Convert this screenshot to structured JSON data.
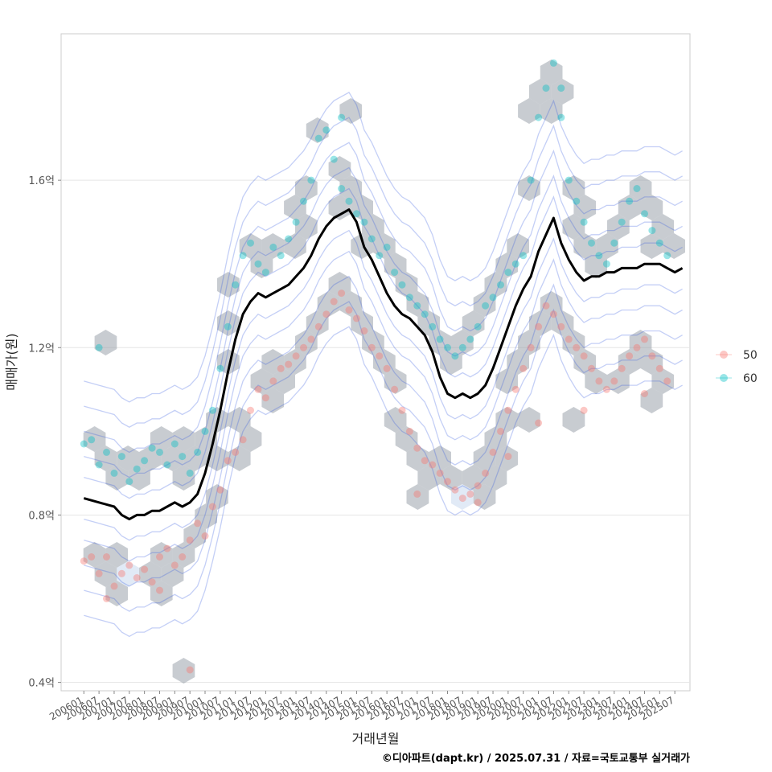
{
  "chart_data": {
    "type": "scatter",
    "xlabel": "거래년월",
    "ylabel": "매매가(원)",
    "caption": "©디아파트(dapt.kr) / 2025.07.31 / 자료=국토교통부 실거래가",
    "x_ticks": [
      "200601",
      "200607",
      "200701",
      "200707",
      "200801",
      "200807",
      "200901",
      "200907",
      "201001",
      "201007",
      "201101",
      "201107",
      "201201",
      "201207",
      "201301",
      "201307",
      "201401",
      "201407",
      "201501",
      "201507",
      "201601",
      "201607",
      "201701",
      "201707",
      "201801",
      "201807",
      "201901",
      "201907",
      "202001",
      "202007",
      "202101",
      "202107",
      "202201",
      "202207",
      "202301",
      "202307",
      "202401",
      "202407",
      "202501",
      "202507"
    ],
    "y_ticks": [
      {
        "value": 0.4,
        "label": "0.4억"
      },
      {
        "value": 0.8,
        "label": "0.8억"
      },
      {
        "value": 1.2,
        "label": "1.2억"
      },
      {
        "value": 1.6,
        "label": "1.6억"
      }
    ],
    "ylim": [
      0.38,
      1.95
    ],
    "xlim": [
      -3,
      80
    ],
    "legend": {
      "placement": "right",
      "entries": [
        {
          "label": "50",
          "color": "#F8766D"
        },
        {
          "label": "60",
          "color": "#00BFC4"
        }
      ]
    },
    "colors": {
      "series_50": "#F8766D",
      "series_60": "#00BFC4",
      "hex": "#9AA3AB",
      "contour": "#2A52E0",
      "trend": "#000000",
      "grid": "#E5E5E5"
    },
    "trend_line": {
      "name": "moving average",
      "x": [
        0,
        2,
        4,
        5,
        6,
        7,
        8,
        9,
        10,
        11,
        12,
        13,
        14,
        15,
        16,
        17,
        18,
        19,
        20,
        21,
        22,
        23,
        24,
        25,
        26,
        27,
        28,
        29,
        30,
        31,
        32,
        33,
        34,
        35,
        36,
        37,
        38,
        39,
        40,
        41,
        42,
        43,
        44,
        45,
        46,
        47,
        48,
        49,
        50,
        51,
        52,
        53,
        54,
        55,
        56,
        57,
        58,
        59,
        60,
        61,
        62,
        63,
        64,
        65,
        66,
        67,
        68,
        69,
        70,
        71,
        72,
        73,
        74,
        75,
        76,
        77,
        78,
        79
      ],
      "y": [
        0.84,
        0.83,
        0.82,
        0.8,
        0.79,
        0.8,
        0.8,
        0.81,
        0.81,
        0.82,
        0.83,
        0.82,
        0.83,
        0.85,
        0.9,
        0.97,
        1.05,
        1.14,
        1.22,
        1.28,
        1.31,
        1.33,
        1.32,
        1.33,
        1.34,
        1.35,
        1.37,
        1.39,
        1.42,
        1.46,
        1.49,
        1.51,
        1.52,
        1.53,
        1.5,
        1.44,
        1.41,
        1.37,
        1.33,
        1.3,
        1.28,
        1.27,
        1.25,
        1.23,
        1.19,
        1.13,
        1.09,
        1.08,
        1.09,
        1.08,
        1.09,
        1.11,
        1.15,
        1.2,
        1.25,
        1.3,
        1.34,
        1.37,
        1.43,
        1.47,
        1.51,
        1.45,
        1.41,
        1.38,
        1.36,
        1.37,
        1.37,
        1.38,
        1.38,
        1.39,
        1.39,
        1.39,
        1.4,
        1.4,
        1.4,
        1.39,
        1.38,
        1.39
      ]
    },
    "series": [
      {
        "name": "50",
        "points": [
          [
            0,
            0.69
          ],
          [
            1,
            0.7
          ],
          [
            2,
            0.66
          ],
          [
            3,
            0.7
          ],
          [
            4,
            0.63
          ],
          [
            5,
            0.66
          ],
          [
            6,
            0.68
          ],
          [
            7,
            0.65
          ],
          [
            8,
            0.67
          ],
          [
            9,
            0.64
          ],
          [
            10,
            0.7
          ],
          [
            11,
            0.72
          ],
          [
            12,
            0.68
          ],
          [
            13,
            0.7
          ],
          [
            14,
            0.74
          ],
          [
            15,
            0.78
          ],
          [
            16,
            0.75
          ],
          [
            17,
            0.82
          ],
          [
            18,
            0.86
          ],
          [
            19,
            0.93
          ],
          [
            20,
            0.95
          ],
          [
            21,
            0.98
          ],
          [
            22,
            1.05
          ],
          [
            23,
            1.1
          ],
          [
            24,
            1.08
          ],
          [
            25,
            1.12
          ],
          [
            26,
            1.15
          ],
          [
            27,
            1.16
          ],
          [
            28,
            1.18
          ],
          [
            29,
            1.2
          ],
          [
            30,
            1.22
          ],
          [
            31,
            1.25
          ],
          [
            32,
            1.28
          ],
          [
            33,
            1.31
          ],
          [
            34,
            1.33
          ],
          [
            35,
            1.29
          ],
          [
            36,
            1.27
          ],
          [
            37,
            1.24
          ],
          [
            38,
            1.2
          ],
          [
            39,
            1.18
          ],
          [
            40,
            1.15
          ],
          [
            41,
            1.1
          ],
          [
            42,
            1.05
          ],
          [
            43,
            1.0
          ],
          [
            44,
            0.96
          ],
          [
            45,
            0.93
          ],
          [
            46,
            0.92
          ],
          [
            47,
            0.9
          ],
          [
            48,
            0.88
          ],
          [
            49,
            0.86
          ],
          [
            50,
            0.84
          ],
          [
            51,
            0.85
          ],
          [
            52,
            0.87
          ],
          [
            53,
            0.9
          ],
          [
            54,
            0.95
          ],
          [
            55,
            1.0
          ],
          [
            56,
            1.05
          ],
          [
            57,
            1.1
          ],
          [
            58,
            1.15
          ],
          [
            59,
            1.2
          ],
          [
            60,
            1.25
          ],
          [
            61,
            1.3
          ],
          [
            62,
            1.28
          ],
          [
            63,
            1.25
          ],
          [
            64,
            1.22
          ],
          [
            65,
            1.2
          ],
          [
            66,
            1.18
          ],
          [
            67,
            1.15
          ],
          [
            68,
            1.12
          ],
          [
            69,
            1.1
          ],
          [
            70,
            1.12
          ],
          [
            71,
            1.15
          ],
          [
            72,
            1.18
          ],
          [
            73,
            1.2
          ],
          [
            74,
            1.22
          ],
          [
            75,
            1.18
          ],
          [
            76,
            1.15
          ],
          [
            77,
            1.12
          ],
          [
            14,
            0.43
          ],
          [
            3,
            0.6
          ],
          [
            10,
            0.62
          ],
          [
            44,
            0.85
          ],
          [
            52,
            0.83
          ],
          [
            56,
            0.94
          ],
          [
            60,
            1.02
          ],
          [
            66,
            1.05
          ],
          [
            74,
            1.09
          ]
        ]
      },
      {
        "name": "60",
        "points": [
          [
            0,
            0.97
          ],
          [
            1,
            0.98
          ],
          [
            2,
            0.92
          ],
          [
            3,
            0.95
          ],
          [
            4,
            0.9
          ],
          [
            5,
            0.94
          ],
          [
            6,
            0.88
          ],
          [
            7,
            0.91
          ],
          [
            8,
            0.93
          ],
          [
            9,
            0.96
          ],
          [
            10,
            0.95
          ],
          [
            11,
            0.92
          ],
          [
            12,
            0.97
          ],
          [
            13,
            0.94
          ],
          [
            14,
            0.9
          ],
          [
            15,
            0.95
          ],
          [
            16,
            1.0
          ],
          [
            17,
            1.05
          ],
          [
            18,
            1.15
          ],
          [
            19,
            1.25
          ],
          [
            20,
            1.35
          ],
          [
            21,
            1.42
          ],
          [
            22,
            1.45
          ],
          [
            23,
            1.4
          ],
          [
            24,
            1.38
          ],
          [
            25,
            1.44
          ],
          [
            26,
            1.42
          ],
          [
            27,
            1.46
          ],
          [
            28,
            1.5
          ],
          [
            29,
            1.55
          ],
          [
            30,
            1.6
          ],
          [
            31,
            1.7
          ],
          [
            32,
            1.72
          ],
          [
            33,
            1.65
          ],
          [
            34,
            1.58
          ],
          [
            35,
            1.55
          ],
          [
            36,
            1.52
          ],
          [
            37,
            1.5
          ],
          [
            38,
            1.46
          ],
          [
            39,
            1.42
          ],
          [
            40,
            1.44
          ],
          [
            41,
            1.38
          ],
          [
            42,
            1.35
          ],
          [
            43,
            1.32
          ],
          [
            44,
            1.3
          ],
          [
            45,
            1.28
          ],
          [
            46,
            1.25
          ],
          [
            47,
            1.22
          ],
          [
            48,
            1.2
          ],
          [
            49,
            1.18
          ],
          [
            50,
            1.2
          ],
          [
            51,
            1.22
          ],
          [
            52,
            1.25
          ],
          [
            53,
            1.3
          ],
          [
            54,
            1.32
          ],
          [
            55,
            1.35
          ],
          [
            56,
            1.38
          ],
          [
            57,
            1.4
          ],
          [
            58,
            1.42
          ],
          [
            59,
            1.6
          ],
          [
            60,
            1.75
          ],
          [
            61,
            1.82
          ],
          [
            62,
            1.88
          ],
          [
            63,
            1.75
          ],
          [
            64,
            1.6
          ],
          [
            65,
            1.55
          ],
          [
            66,
            1.5
          ],
          [
            67,
            1.45
          ],
          [
            68,
            1.42
          ],
          [
            69,
            1.4
          ],
          [
            70,
            1.45
          ],
          [
            71,
            1.5
          ],
          [
            72,
            1.55
          ],
          [
            73,
            1.58
          ],
          [
            74,
            1.52
          ],
          [
            75,
            1.48
          ],
          [
            76,
            1.45
          ],
          [
            77,
            1.42
          ],
          [
            2,
            1.2
          ],
          [
            34,
            1.75
          ],
          [
            63,
            1.82
          ]
        ]
      }
    ]
  }
}
